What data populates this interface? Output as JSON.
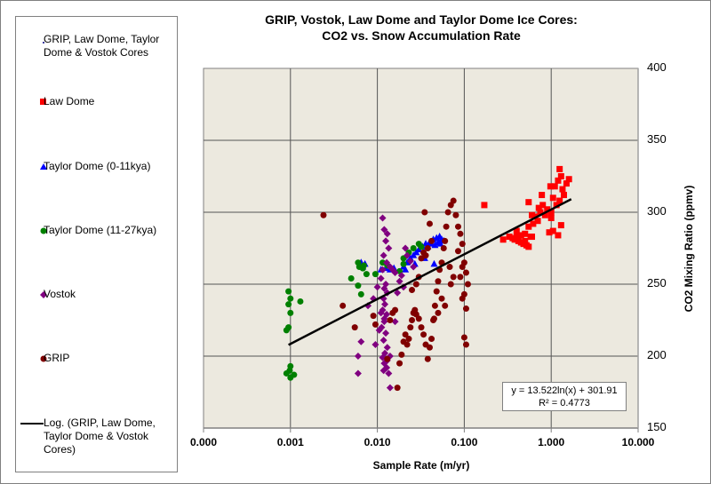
{
  "chart_data": {
    "type": "scatter",
    "title": "GRIP, Vostok, Law Dome and Taylor Dome Ice Cores:",
    "subtitle": "CO2 vs. Snow Accumulation Rate",
    "xlabel": "Sample Rate (m/yr)",
    "ylabel": "CO2 Mixing Ratio (ppmv)",
    "xscale": "log",
    "xlim": [
      0.0001,
      10
    ],
    "ylim": [
      150,
      400
    ],
    "xticks": [
      "0.000",
      "0.001",
      "0.010",
      "0.100",
      "1.000",
      "10.000"
    ],
    "xtick_values": [
      0.0001,
      0.001,
      0.01,
      0.1,
      1,
      10
    ],
    "yticks": [
      "150",
      "200",
      "250",
      "300",
      "350",
      "400"
    ],
    "ytick_values": [
      150,
      200,
      250,
      300,
      350,
      400
    ],
    "grid": true,
    "legend_position": "left",
    "background_color": "#ECE9DF",
    "trendline": {
      "name": "Log. (GRIP, Law Dome, Taylor Dome & Vostok Cores)",
      "type": "logarithmic",
      "slope": 13.522,
      "intercept": 301.91,
      "x_range": [
        0.00095,
        1.7
      ],
      "equation_label": "y = 13.522ln(x) + 301.91",
      "r2_label": "R² = 0.4773",
      "color": "#000000"
    },
    "series": [
      {
        "name": "GRIP, Law Dome, Taylor Dome & Vostok Cores",
        "marker": "dot",
        "color": "#000080",
        "points": []
      },
      {
        "name": "Law Dome",
        "marker": "square",
        "color": "#FF0000",
        "points": [
          [
            0.17,
            305
          ],
          [
            0.28,
            281
          ],
          [
            0.33,
            283
          ],
          [
            0.36,
            282
          ],
          [
            0.38,
            281
          ],
          [
            0.4,
            283
          ],
          [
            0.42,
            280
          ],
          [
            0.45,
            279
          ],
          [
            0.48,
            278
          ],
          [
            0.5,
            280
          ],
          [
            0.52,
            277
          ],
          [
            0.55,
            276
          ],
          [
            0.58,
            283
          ],
          [
            0.45,
            284
          ],
          [
            0.5,
            285
          ],
          [
            0.6,
            283
          ],
          [
            0.4,
            287
          ],
          [
            0.55,
            290
          ],
          [
            0.62,
            292
          ],
          [
            0.65,
            297
          ],
          [
            0.7,
            294
          ],
          [
            0.75,
            300
          ],
          [
            0.8,
            305
          ],
          [
            0.78,
            312
          ],
          [
            0.72,
            303
          ],
          [
            0.85,
            298
          ],
          [
            0.9,
            302
          ],
          [
            1.0,
            300
          ],
          [
            1.05,
            310
          ],
          [
            1.1,
            318
          ],
          [
            1.2,
            322
          ],
          [
            1.25,
            330
          ],
          [
            1.3,
            325
          ],
          [
            1.35,
            316
          ],
          [
            1.4,
            312
          ],
          [
            1.5,
            320
          ],
          [
            1.6,
            323
          ],
          [
            1.15,
            305
          ],
          [
            1.0,
            296
          ],
          [
            0.95,
            286
          ],
          [
            1.05,
            287
          ],
          [
            1.2,
            284
          ],
          [
            1.3,
            291
          ],
          [
            1.25,
            308
          ],
          [
            0.55,
            307
          ],
          [
            0.6,
            298
          ],
          [
            0.98,
            318
          ]
        ]
      },
      {
        "name": "Taylor Dome (0-11kya)",
        "marker": "triangle",
        "color": "#0000FF",
        "points": [
          [
            0.0065,
            265
          ],
          [
            0.0072,
            264
          ],
          [
            0.0068,
            262
          ],
          [
            0.011,
            260
          ],
          [
            0.0125,
            261
          ],
          [
            0.014,
            260
          ],
          [
            0.0155,
            261
          ],
          [
            0.02,
            262
          ],
          [
            0.022,
            265
          ],
          [
            0.024,
            268
          ],
          [
            0.026,
            270
          ],
          [
            0.028,
            272
          ],
          [
            0.03,
            274
          ],
          [
            0.033,
            276
          ],
          [
            0.036,
            278
          ],
          [
            0.04,
            279
          ],
          [
            0.044,
            281
          ],
          [
            0.048,
            282
          ],
          [
            0.052,
            283
          ],
          [
            0.055,
            281
          ],
          [
            0.05,
            279
          ],
          [
            0.046,
            277
          ],
          [
            0.042,
            278
          ],
          [
            0.038,
            276
          ],
          [
            0.027,
            264
          ],
          [
            0.035,
            268
          ],
          [
            0.045,
            264
          ],
          [
            0.021,
            260
          ],
          [
            0.053,
            278
          ],
          [
            0.058,
            280
          ]
        ]
      },
      {
        "name": "Taylor Dome (11-27kya)",
        "marker": "circle",
        "color": "#008000",
        "points": [
          [
            0.00095,
            245
          ],
          [
            0.001,
            240
          ],
          [
            0.00095,
            236
          ],
          [
            0.0013,
            238
          ],
          [
            0.001,
            230
          ],
          [
            0.00095,
            220
          ],
          [
            0.0009,
            218
          ],
          [
            0.001,
            193
          ],
          [
            0.00098,
            190
          ],
          [
            0.0009,
            188
          ],
          [
            0.001,
            185
          ],
          [
            0.0011,
            187
          ],
          [
            0.005,
            254
          ],
          [
            0.006,
            249
          ],
          [
            0.0065,
            243
          ],
          [
            0.006,
            265
          ],
          [
            0.0062,
            262
          ],
          [
            0.007,
            263
          ],
          [
            0.0068,
            261
          ],
          [
            0.0075,
            257
          ],
          [
            0.0115,
            265
          ],
          [
            0.013,
            263
          ],
          [
            0.02,
            268
          ],
          [
            0.023,
            272
          ],
          [
            0.026,
            275
          ],
          [
            0.03,
            278
          ],
          [
            0.032,
            276
          ],
          [
            0.02,
            264
          ],
          [
            0.018,
            259
          ],
          [
            0.0095,
            257
          ]
        ]
      },
      {
        "name": "Vostok",
        "marker": "diamond",
        "color": "#800080",
        "points": [
          [
            0.0115,
            296
          ],
          [
            0.012,
            288
          ],
          [
            0.013,
            285
          ],
          [
            0.0125,
            280
          ],
          [
            0.0118,
            270
          ],
          [
            0.0135,
            275
          ],
          [
            0.0128,
            265
          ],
          [
            0.014,
            262
          ],
          [
            0.0115,
            260
          ],
          [
            0.011,
            254
          ],
          [
            0.0125,
            250
          ],
          [
            0.012,
            247
          ],
          [
            0.013,
            244
          ],
          [
            0.0118,
            240
          ],
          [
            0.0122,
            236
          ],
          [
            0.0115,
            232
          ],
          [
            0.0128,
            229
          ],
          [
            0.012,
            224
          ],
          [
            0.0112,
            220
          ],
          [
            0.0125,
            216
          ],
          [
            0.0118,
            211
          ],
          [
            0.013,
            206
          ],
          [
            0.0122,
            202
          ],
          [
            0.0115,
            199
          ],
          [
            0.012,
            195
          ],
          [
            0.0128,
            192
          ],
          [
            0.0118,
            190
          ],
          [
            0.0135,
            188
          ],
          [
            0.014,
            178
          ],
          [
            0.01,
            248
          ],
          [
            0.011,
            230
          ],
          [
            0.0105,
            218
          ],
          [
            0.0095,
            208
          ],
          [
            0.009,
            240
          ],
          [
            0.0078,
            235
          ],
          [
            0.006,
            200
          ],
          [
            0.006,
            188
          ],
          [
            0.0065,
            210
          ],
          [
            0.016,
            258
          ],
          [
            0.018,
            252
          ],
          [
            0.02,
            248
          ],
          [
            0.022,
            270
          ],
          [
            0.024,
            266
          ],
          [
            0.026,
            262
          ],
          [
            0.021,
            275
          ],
          [
            0.019,
            256
          ],
          [
            0.015,
            260
          ],
          [
            0.017,
            244
          ],
          [
            0.014,
            200
          ],
          [
            0.013,
            197
          ],
          [
            0.016,
            224
          ],
          [
            0.012,
            226
          ]
        ]
      },
      {
        "name": "GRIP",
        "marker": "circle",
        "color": "#800000",
        "points": [
          [
            0.0024,
            298
          ],
          [
            0.004,
            235
          ],
          [
            0.0055,
            220
          ],
          [
            0.009,
            228
          ],
          [
            0.0095,
            222
          ],
          [
            0.013,
            198
          ],
          [
            0.014,
            225
          ],
          [
            0.015,
            230
          ],
          [
            0.016,
            232
          ],
          [
            0.017,
            178
          ],
          [
            0.018,
            195
          ],
          [
            0.019,
            201
          ],
          [
            0.02,
            210
          ],
          [
            0.021,
            215
          ],
          [
            0.022,
            208
          ],
          [
            0.023,
            212
          ],
          [
            0.024,
            220
          ],
          [
            0.025,
            225
          ],
          [
            0.026,
            230
          ],
          [
            0.027,
            232
          ],
          [
            0.028,
            229
          ],
          [
            0.03,
            226
          ],
          [
            0.032,
            220
          ],
          [
            0.034,
            215
          ],
          [
            0.036,
            208
          ],
          [
            0.038,
            198
          ],
          [
            0.04,
            206
          ],
          [
            0.042,
            212
          ],
          [
            0.044,
            225
          ],
          [
            0.046,
            235
          ],
          [
            0.048,
            245
          ],
          [
            0.05,
            252
          ],
          [
            0.052,
            260
          ],
          [
            0.055,
            265
          ],
          [
            0.058,
            275
          ],
          [
            0.06,
            280
          ],
          [
            0.062,
            290
          ],
          [
            0.065,
            300
          ],
          [
            0.07,
            305
          ],
          [
            0.075,
            308
          ],
          [
            0.08,
            298
          ],
          [
            0.085,
            290
          ],
          [
            0.09,
            285
          ],
          [
            0.095,
            278
          ],
          [
            0.1,
            265
          ],
          [
            0.105,
            258
          ],
          [
            0.11,
            250
          ],
          [
            0.1,
            243
          ],
          [
            0.095,
            240
          ],
          [
            0.105,
            233
          ],
          [
            0.1,
            213
          ],
          [
            0.105,
            208
          ],
          [
            0.09,
            255
          ],
          [
            0.06,
            235
          ],
          [
            0.055,
            240
          ],
          [
            0.05,
            230
          ],
          [
            0.045,
            226
          ],
          [
            0.04,
            292
          ],
          [
            0.035,
            300
          ],
          [
            0.03,
            255
          ],
          [
            0.028,
            250
          ],
          [
            0.025,
            246
          ],
          [
            0.032,
            268
          ],
          [
            0.034,
            272
          ],
          [
            0.036,
            270
          ],
          [
            0.038,
            275
          ],
          [
            0.042,
            280
          ],
          [
            0.085,
            273
          ],
          [
            0.095,
            262
          ],
          [
            0.075,
            255
          ],
          [
            0.07,
            250
          ],
          [
            0.068,
            262
          ]
        ]
      }
    ]
  },
  "legend": {
    "items": [
      {
        "label": "GRIP, Law Dome, Taylor Dome & Vostok Cores"
      },
      {
        "label": "Law Dome"
      },
      {
        "label": "Taylor Dome (0-11kya)"
      },
      {
        "label": "Taylor Dome (11-27kya)"
      },
      {
        "label": "Vostok"
      },
      {
        "label": "GRIP"
      },
      {
        "label": "Log. (GRIP, Law Dome, Taylor Dome & Vostok Cores)"
      }
    ]
  }
}
